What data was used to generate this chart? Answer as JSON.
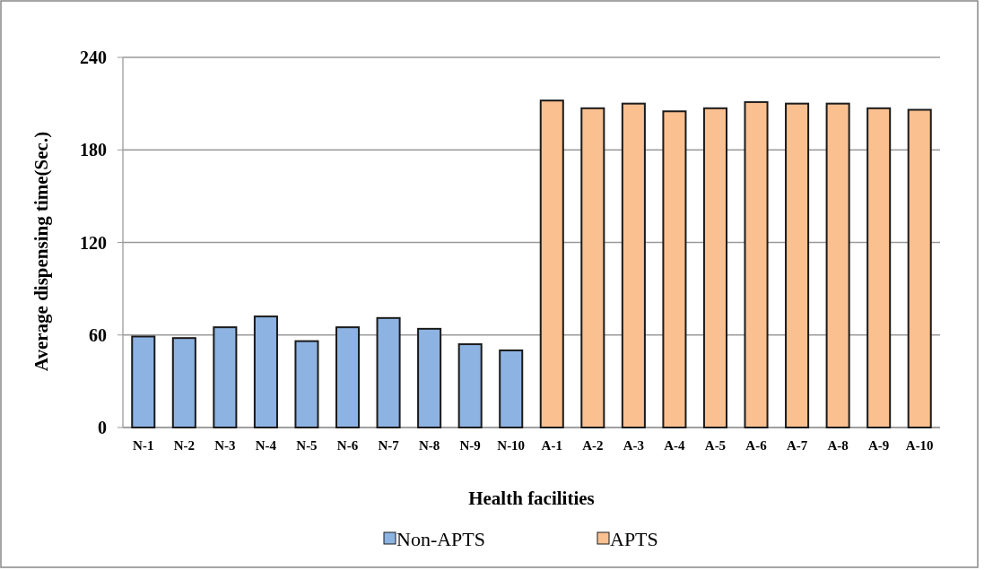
{
  "chart_data": {
    "type": "bar",
    "xlabel": "Health facilities",
    "ylabel": "Average dispensing time(Sec.)",
    "categories": [
      "N-1",
      "N-2",
      "N-3",
      "N-4",
      "N-5",
      "N-6",
      "N-7",
      "N-8",
      "N-9",
      "N-10",
      "A-1",
      "A-2",
      "A-3",
      "A-4",
      "A-5",
      "A-6",
      "A-7",
      "A-8",
      "A-9",
      "A-10"
    ],
    "series": [
      {
        "name": "Non-APTS",
        "color": "#8db3e2",
        "values": [
          59,
          58,
          65,
          72,
          56,
          65,
          71,
          64,
          54,
          50,
          null,
          null,
          null,
          null,
          null,
          null,
          null,
          null,
          null,
          null
        ]
      },
      {
        "name": "APTS",
        "color": "#fac090",
        "values": [
          null,
          null,
          null,
          null,
          null,
          null,
          null,
          null,
          null,
          null,
          212,
          207,
          210,
          205,
          207,
          211,
          210,
          210,
          207,
          206
        ]
      }
    ],
    "ylim": [
      0,
      240
    ],
    "yticks": [
      0,
      60,
      120,
      180,
      240
    ],
    "grid": "y",
    "legend": "bottom"
  }
}
